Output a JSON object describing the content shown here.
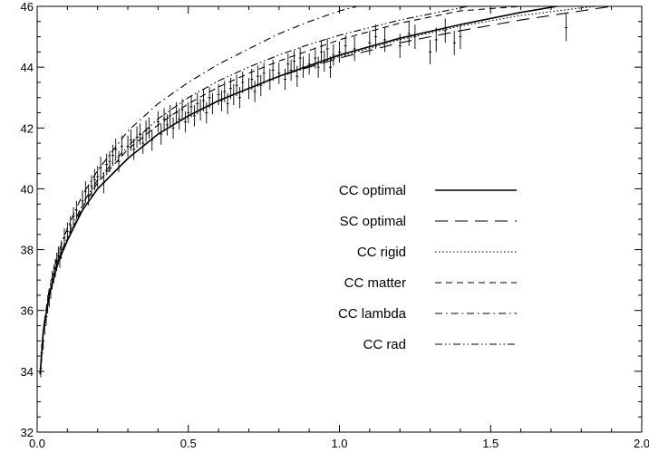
{
  "chart_data": {
    "type": "line",
    "title": "",
    "xlabel": "",
    "ylabel": "",
    "xlim": [
      0.0,
      2.0
    ],
    "ylim": [
      32,
      46
    ],
    "x_ticks": [
      0.0,
      0.5,
      1.0,
      1.5,
      2.0
    ],
    "x_tick_labels": [
      "0.0",
      "0.5",
      "1.0",
      "1.5",
      "2.0"
    ],
    "y_ticks": [
      32,
      34,
      36,
      38,
      40,
      42,
      44,
      46
    ],
    "y_tick_labels": [
      "32",
      "34",
      "36",
      "38",
      "40",
      "42",
      "44",
      "46"
    ],
    "grid": false,
    "legend_position": "center-right",
    "series": [
      {
        "name": "CC optimal",
        "style": "solid",
        "x": [
          0.01,
          0.02,
          0.04,
          0.07,
          0.1,
          0.15,
          0.2,
          0.3,
          0.4,
          0.5,
          0.6,
          0.7,
          0.8,
          0.9,
          1.0,
          1.2,
          1.4,
          1.6,
          1.72
        ],
        "y": [
          33.9,
          35.3,
          36.5,
          37.6,
          38.3,
          39.3,
          40.0,
          41.0,
          41.8,
          42.4,
          42.9,
          43.3,
          43.7,
          44.05,
          44.4,
          44.95,
          45.4,
          45.8,
          46.0
        ]
      },
      {
        "name": "SC optimal",
        "style": "long-dash",
        "x": [
          0.01,
          0.02,
          0.04,
          0.07,
          0.1,
          0.15,
          0.2,
          0.3,
          0.4,
          0.5,
          0.6,
          0.7,
          0.8,
          0.9,
          1.0,
          1.2,
          1.4,
          1.6,
          1.8,
          1.9
        ],
        "y": [
          33.9,
          35.3,
          36.5,
          37.6,
          38.3,
          39.3,
          40.0,
          41.0,
          41.8,
          42.4,
          42.9,
          43.3,
          43.7,
          44.0,
          44.3,
          44.8,
          45.2,
          45.55,
          45.85,
          46.0
        ]
      },
      {
        "name": "CC rigid",
        "style": "dotted",
        "x": [
          0.01,
          0.02,
          0.04,
          0.07,
          0.1,
          0.15,
          0.2,
          0.3,
          0.4,
          0.5,
          0.6,
          0.7,
          0.8,
          0.9,
          1.0,
          1.2,
          1.4,
          1.6,
          1.8,
          1.85
        ],
        "y": [
          33.9,
          35.3,
          36.5,
          37.6,
          38.3,
          39.3,
          40.0,
          41.0,
          41.8,
          42.4,
          42.9,
          43.3,
          43.7,
          44.0,
          44.35,
          44.9,
          45.35,
          45.7,
          45.95,
          46.0
        ]
      },
      {
        "name": "CC matter",
        "style": "dashed",
        "x": [
          0.01,
          0.02,
          0.04,
          0.07,
          0.1,
          0.15,
          0.2,
          0.3,
          0.4,
          0.5,
          0.6,
          0.7,
          0.8,
          0.9,
          1.0,
          1.2,
          1.4,
          1.6,
          1.7
        ],
        "y": [
          33.9,
          35.3,
          36.5,
          37.6,
          38.3,
          39.4,
          40.2,
          41.3,
          42.1,
          42.8,
          43.35,
          43.8,
          44.2,
          44.55,
          44.9,
          45.45,
          45.85,
          46.0,
          46.1
        ]
      },
      {
        "name": "CC lambda",
        "style": "dash-dot",
        "x": [
          0.01,
          0.02,
          0.04,
          0.07,
          0.1,
          0.15,
          0.2,
          0.3,
          0.4,
          0.5,
          0.6,
          0.7,
          0.8,
          0.9,
          1.0,
          1.1
        ],
        "y": [
          33.9,
          35.4,
          36.7,
          37.9,
          38.7,
          39.8,
          40.6,
          41.9,
          42.8,
          43.5,
          44.1,
          44.6,
          45.1,
          45.5,
          45.85,
          46.1
        ]
      },
      {
        "name": "CC rad",
        "style": "dash-dot-dot",
        "x": [
          0.01,
          0.02,
          0.04,
          0.07,
          0.1,
          0.15,
          0.2,
          0.3,
          0.4,
          0.5,
          0.6,
          0.7,
          0.8,
          0.9,
          1.0,
          1.2,
          1.4,
          1.45
        ],
        "y": [
          33.9,
          35.3,
          36.5,
          37.7,
          38.4,
          39.5,
          40.3,
          41.4,
          42.3,
          43.0,
          43.55,
          44.0,
          44.4,
          44.75,
          45.05,
          45.55,
          45.95,
          46.05
        ]
      }
    ],
    "data_points": {
      "x": [
        0.012,
        0.015,
        0.02,
        0.025,
        0.03,
        0.035,
        0.04,
        0.045,
        0.05,
        0.055,
        0.06,
        0.065,
        0.07,
        0.075,
        0.08,
        0.09,
        0.1,
        0.11,
        0.12,
        0.13,
        0.15,
        0.16,
        0.17,
        0.18,
        0.19,
        0.2,
        0.21,
        0.22,
        0.23,
        0.24,
        0.25,
        0.26,
        0.27,
        0.28,
        0.3,
        0.31,
        0.32,
        0.33,
        0.34,
        0.35,
        0.36,
        0.37,
        0.38,
        0.4,
        0.41,
        0.42,
        0.43,
        0.44,
        0.45,
        0.46,
        0.47,
        0.48,
        0.49,
        0.5,
        0.51,
        0.52,
        0.53,
        0.54,
        0.55,
        0.56,
        0.57,
        0.58,
        0.6,
        0.61,
        0.62,
        0.63,
        0.64,
        0.65,
        0.66,
        0.67,
        0.68,
        0.7,
        0.71,
        0.72,
        0.73,
        0.74,
        0.75,
        0.77,
        0.78,
        0.8,
        0.82,
        0.83,
        0.84,
        0.85,
        0.86,
        0.87,
        0.88,
        0.9,
        0.92,
        0.93,
        0.94,
        0.95,
        0.96,
        0.97,
        0.98,
        1.0,
        1.02,
        1.05,
        1.1,
        1.12,
        1.15,
        1.2,
        1.23,
        1.25,
        1.3,
        1.32,
        1.35,
        1.38,
        1.4,
        1.75
      ],
      "y": [
        34.1,
        34.6,
        35.0,
        35.5,
        35.8,
        36.2,
        36.4,
        36.7,
        37.0,
        37.2,
        37.4,
        37.6,
        37.8,
        37.7,
        38.0,
        38.4,
        38.6,
        38.8,
        39.1,
        39.3,
        39.6,
        39.9,
        39.8,
        40.1,
        40.3,
        40.4,
        40.7,
        40.2,
        40.8,
        40.9,
        41.1,
        41.3,
        40.9,
        41.4,
        41.4,
        41.6,
        41.3,
        41.7,
        41.8,
        41.5,
        41.9,
        42.0,
        41.6,
        42.2,
        41.8,
        42.3,
        42.1,
        42.4,
        42.0,
        42.5,
        42.3,
        42.6,
        42.2,
        42.5,
        42.7,
        42.4,
        42.8,
        42.6,
        42.9,
        42.5,
        43.0,
        42.8,
        43.1,
        42.9,
        43.2,
        42.8,
        43.3,
        43.1,
        43.4,
        43.0,
        43.5,
        43.3,
        43.6,
        43.2,
        43.7,
        43.4,
        43.8,
        43.6,
        43.9,
        43.8,
        43.6,
        44.1,
        43.9,
        44.2,
        43.7,
        44.3,
        44.0,
        44.1,
        44.3,
        44.0,
        44.5,
        44.2,
        44.6,
        44.0,
        44.4,
        44.5,
        44.7,
        44.6,
        44.8,
        45.0,
        44.9,
        44.7,
        45.1,
        45.0,
        44.5,
        44.9,
        45.2,
        44.8,
        45.0,
        45.3
      ],
      "err": [
        0.3,
        0.3,
        0.3,
        0.3,
        0.3,
        0.3,
        0.3,
        0.3,
        0.3,
        0.3,
        0.3,
        0.3,
        0.3,
        0.3,
        0.3,
        0.3,
        0.3,
        0.3,
        0.3,
        0.3,
        0.35,
        0.35,
        0.35,
        0.35,
        0.35,
        0.35,
        0.35,
        0.35,
        0.35,
        0.35,
        0.35,
        0.35,
        0.35,
        0.35,
        0.35,
        0.35,
        0.35,
        0.35,
        0.35,
        0.35,
        0.35,
        0.35,
        0.35,
        0.35,
        0.35,
        0.35,
        0.35,
        0.35,
        0.35,
        0.35,
        0.35,
        0.35,
        0.35,
        0.35,
        0.35,
        0.35,
        0.35,
        0.35,
        0.35,
        0.35,
        0.35,
        0.35,
        0.35,
        0.35,
        0.35,
        0.35,
        0.35,
        0.35,
        0.35,
        0.35,
        0.35,
        0.35,
        0.35,
        0.35,
        0.35,
        0.35,
        0.35,
        0.35,
        0.35,
        0.35,
        0.35,
        0.35,
        0.35,
        0.35,
        0.35,
        0.35,
        0.35,
        0.35,
        0.35,
        0.35,
        0.35,
        0.35,
        0.35,
        0.35,
        0.35,
        0.35,
        0.35,
        0.4,
        0.4,
        0.4,
        0.4,
        0.4,
        0.4,
        0.4,
        0.4,
        0.4,
        0.4,
        0.4,
        0.4,
        0.45
      ]
    }
  }
}
